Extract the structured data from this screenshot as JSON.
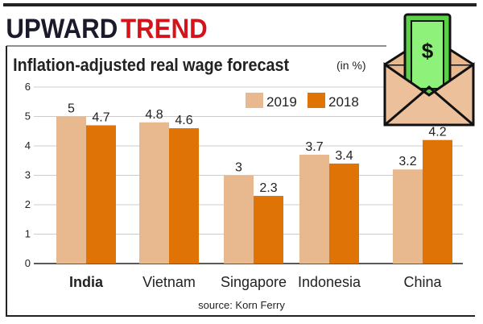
{
  "header": {
    "title_part1": "UPWARD",
    "title_part2": "TREND"
  },
  "chart_data": {
    "type": "bar",
    "title": "Inflation-adjusted real wage forecast",
    "unit": "(in %)",
    "categories": [
      "India",
      "Vietnam",
      "Singapore",
      "Indonesia",
      "China"
    ],
    "series": [
      {
        "name": "2019",
        "values": [
          5,
          4.8,
          3,
          3.7,
          3.2
        ],
        "color": "#e8b88f"
      },
      {
        "name": "2018",
        "values": [
          4.7,
          4.6,
          2.3,
          3.4,
          4.2
        ],
        "color": "#e07306"
      }
    ],
    "value_labels": [
      [
        "5",
        "4.8",
        "3",
        "3.7",
        "3.2"
      ],
      [
        "4.7",
        "4.6",
        "2.3",
        "3.4",
        "4.2"
      ]
    ],
    "yticks": [
      "0",
      "1",
      "2",
      "3",
      "4",
      "5",
      "6"
    ],
    "ylim": [
      0,
      6
    ],
    "grid": true,
    "legend": "top-right",
    "source": "source: Korn Ferry"
  },
  "colors": {
    "title_dark": "#1a1a2a",
    "title_red": "#d3141c"
  },
  "icon": "money-envelope-icon"
}
